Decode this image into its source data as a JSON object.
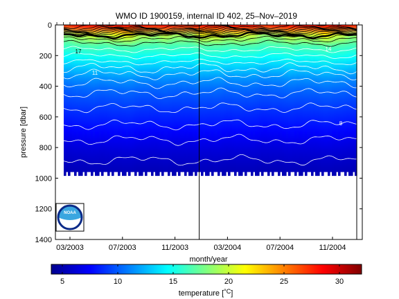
{
  "chart_data": {
    "type": "heatmap",
    "title": "WMO ID 1900159, internal ID 402, 25–Nov–2019",
    "xlabel": "month/year",
    "ylabel": "pressure [dbar]",
    "ylim": [
      1400,
      0
    ],
    "y_ticks": [
      0,
      200,
      400,
      600,
      800,
      1000,
      1200,
      1400
    ],
    "y_tick_labels": [
      "0",
      "200",
      "400",
      "600",
      "800",
      "1000",
      "1200",
      "1400"
    ],
    "x_tick_labels": [
      "03/2003",
      "07/2003",
      "11/2003",
      "03/2004",
      "07/2004",
      "11/2004"
    ],
    "colorbar": {
      "label": "temperature [°C]",
      "label_main": "temperature [",
      "label_unit": "°C",
      "label_close": "]",
      "range": [
        4,
        32
      ],
      "ticks": [
        5,
        10,
        15,
        20,
        25,
        30
      ],
      "tick_labels": [
        "5",
        "10",
        "15",
        "20",
        "25",
        "30"
      ],
      "colormap": "jet"
    },
    "contour_labels": [
      {
        "text": "17",
        "depth": 185
      },
      {
        "text": "14",
        "depth": 170
      },
      {
        "text": "11",
        "depth": 325
      },
      {
        "text": "8",
        "depth": 655
      }
    ],
    "profile": [
      {
        "d": 0,
        "t": 28.5
      },
      {
        "d": 20,
        "t": 27.0
      },
      {
        "d": 50,
        "t": 22.0
      },
      {
        "d": 80,
        "t": 18.5
      },
      {
        "d": 120,
        "t": 17.0
      },
      {
        "d": 180,
        "t": 15.5
      },
      {
        "d": 250,
        "t": 13.8
      },
      {
        "d": 330,
        "t": 11.8
      },
      {
        "d": 420,
        "t": 10.3
      },
      {
        "d": 520,
        "t": 9.2
      },
      {
        "d": 650,
        "t": 8.0
      },
      {
        "d": 800,
        "t": 6.5
      },
      {
        "d": 1000,
        "t": 5.3
      }
    ],
    "max_profile_depth": 1000,
    "vertical_markers": [
      "11/2003",
      "11/2004"
    ]
  },
  "logo": {
    "text": "NOAA"
  }
}
